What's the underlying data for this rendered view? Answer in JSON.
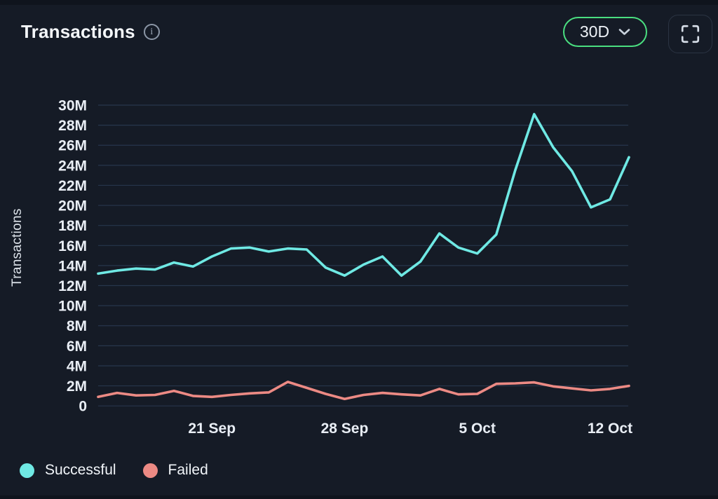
{
  "header": {
    "title": "Transactions",
    "range_selector": {
      "value": "30D"
    }
  },
  "icons": {
    "info": "i",
    "chevron_down": "chevron-down",
    "fullscreen": "fullscreen-corners"
  },
  "colors": {
    "background": "#151b26",
    "gridline": "#27364c",
    "accent_green": "#4ade80",
    "successful": "#6fe9e4",
    "failed": "#ec8a84",
    "tick_text": "#e9eef5"
  },
  "chart_data": {
    "type": "line",
    "title": "Transactions",
    "ylabel": "Transactions",
    "unit": "M",
    "ylim": [
      0,
      30
    ],
    "grid": "horizontal",
    "legend_position": "bottom-left",
    "x": [
      "15 Sep",
      "16 Sep",
      "17 Sep",
      "18 Sep",
      "19 Sep",
      "20 Sep",
      "21 Sep",
      "22 Sep",
      "23 Sep",
      "24 Sep",
      "25 Sep",
      "26 Sep",
      "27 Sep",
      "28 Sep",
      "29 Sep",
      "30 Sep",
      "1 Oct",
      "2 Oct",
      "3 Oct",
      "4 Oct",
      "5 Oct",
      "6 Oct",
      "7 Oct",
      "8 Oct",
      "9 Oct",
      "10 Oct",
      "11 Oct",
      "12 Oct",
      "13 Oct"
    ],
    "x_ticks": [
      {
        "index": 6,
        "label": "21 Sep"
      },
      {
        "index": 13,
        "label": "28 Sep"
      },
      {
        "index": 20,
        "label": "5 Oct"
      },
      {
        "index": 27,
        "label": "12 Oct"
      }
    ],
    "y_ticks": [
      {
        "value": 30,
        "label": "30M"
      },
      {
        "value": 28,
        "label": "28M"
      },
      {
        "value": 26,
        "label": "26M"
      },
      {
        "value": 24,
        "label": "24M"
      },
      {
        "value": 22,
        "label": "22M"
      },
      {
        "value": 20,
        "label": "20M"
      },
      {
        "value": 18,
        "label": "18M"
      },
      {
        "value": 16,
        "label": "16M"
      },
      {
        "value": 14,
        "label": "14M"
      },
      {
        "value": 12,
        "label": "12M"
      },
      {
        "value": 10,
        "label": "10M"
      },
      {
        "value": 8,
        "label": "8M"
      },
      {
        "value": 6,
        "label": "6M"
      },
      {
        "value": 4,
        "label": "4M"
      },
      {
        "value": 2,
        "label": "2M"
      },
      {
        "value": 0,
        "label": "0"
      }
    ],
    "series": [
      {
        "name": "Successful",
        "color": "#6fe9e4",
        "values_millions": [
          13.2,
          13.5,
          13.7,
          13.6,
          14.3,
          13.9,
          14.9,
          15.7,
          15.8,
          15.4,
          15.7,
          15.6,
          13.8,
          13.0,
          14.1,
          14.9,
          13.0,
          14.4,
          17.2,
          15.8,
          15.2,
          17.1,
          23.5,
          29.1,
          25.8,
          23.4,
          19.8,
          20.6,
          24.8
        ]
      },
      {
        "name": "Failed",
        "color": "#ec8a84",
        "values_millions": [
          0.9,
          1.3,
          1.05,
          1.1,
          1.5,
          1.0,
          0.9,
          1.1,
          1.25,
          1.35,
          2.4,
          1.8,
          1.2,
          0.7,
          1.1,
          1.3,
          1.15,
          1.05,
          1.7,
          1.15,
          1.2,
          2.2,
          2.25,
          2.35,
          1.95,
          1.75,
          1.55,
          1.7,
          2.0
        ]
      }
    ]
  }
}
